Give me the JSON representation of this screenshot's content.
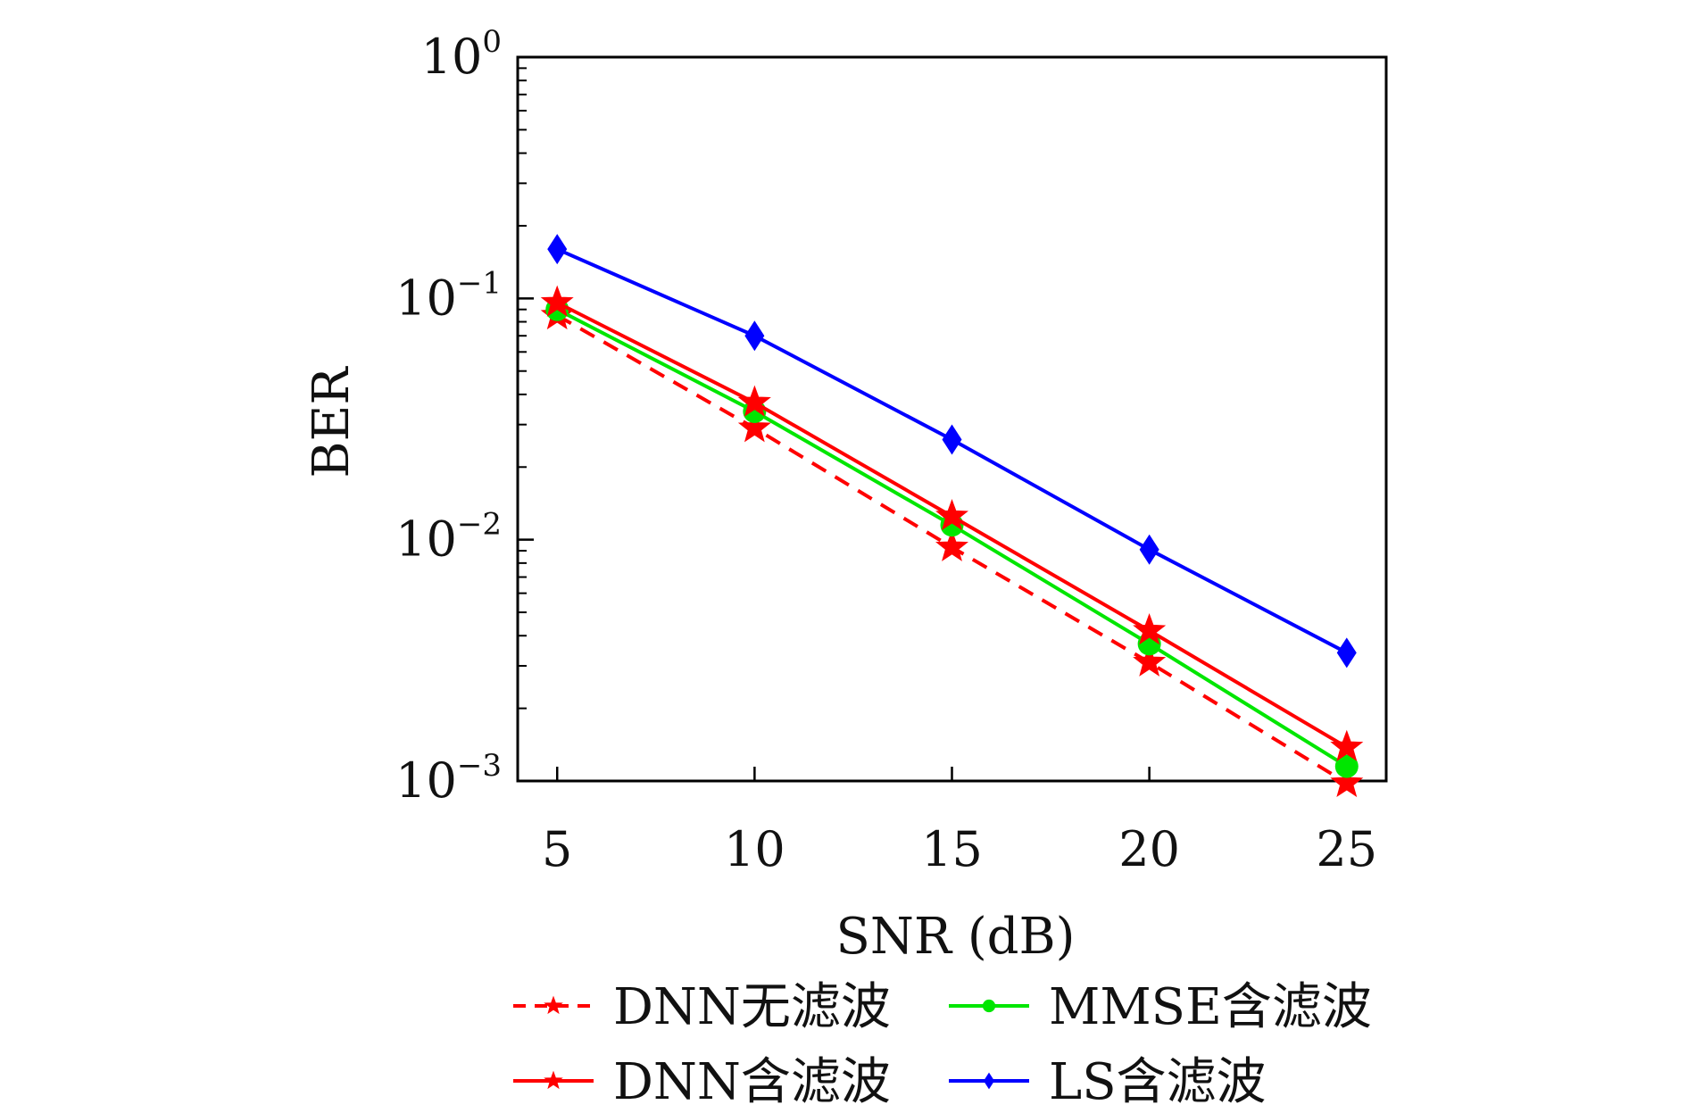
{
  "chart_data": {
    "type": "line",
    "title": "",
    "xlabel": "SNR (dB)",
    "ylabel": "BER",
    "x": [
      5,
      10,
      15,
      20,
      25
    ],
    "x_ticks": [
      "5",
      "10",
      "15",
      "20",
      "25"
    ],
    "xlim": [
      4,
      26
    ],
    "yscale": "log",
    "ylim": [
      0.001,
      1
    ],
    "y_ticks": [
      {
        "value": 1,
        "base": "10",
        "exp": "0"
      },
      {
        "value": 0.1,
        "base": "10",
        "exp": "−1"
      },
      {
        "value": 0.01,
        "base": "10",
        "exp": "−2"
      },
      {
        "value": 0.001,
        "base": "10",
        "exp": "−3"
      }
    ],
    "grid": false,
    "legend_position": "bottom",
    "series": [
      {
        "name": "DNN无滤波",
        "color": "#ff0000",
        "dash": "dashed",
        "marker": "star",
        "values": [
          0.085,
          0.029,
          0.0093,
          0.0031,
          0.00098
        ]
      },
      {
        "name": "MMSE含滤波",
        "color": "#00e600",
        "dash": "solid",
        "marker": "circle",
        "values": [
          0.09,
          0.034,
          0.0115,
          0.0037,
          0.00115
        ]
      },
      {
        "name": "DNN含滤波",
        "color": "#ff0000",
        "dash": "solid",
        "marker": "star",
        "values": [
          0.096,
          0.037,
          0.0125,
          0.0042,
          0.00138
        ]
      },
      {
        "name": "LS含滤波",
        "color": "#0000ff",
        "dash": "solid",
        "marker": "diamond",
        "values": [
          0.16,
          0.07,
          0.026,
          0.0091,
          0.0034
        ]
      }
    ],
    "legend_order": [
      0,
      1,
      2,
      3
    ]
  }
}
